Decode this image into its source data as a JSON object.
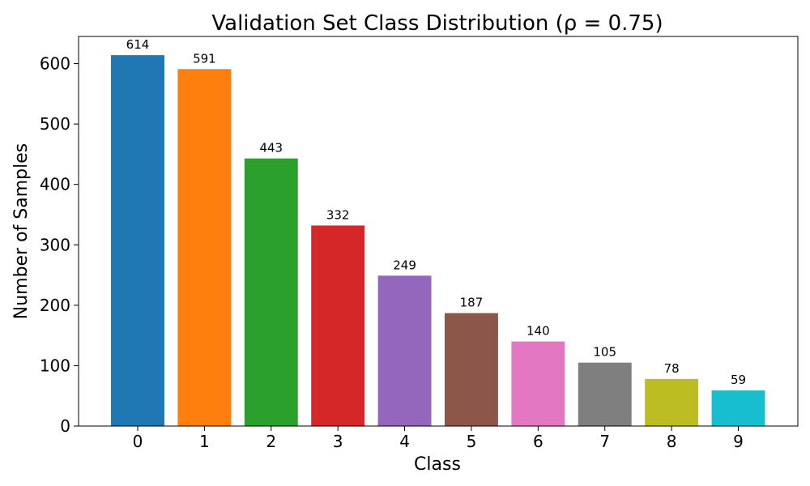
{
  "chart_data": {
    "type": "bar",
    "title": "Validation Set Class Distribution (ρ = 0.75)",
    "xlabel": "Class",
    "ylabel": "Number of Samples",
    "categories": [
      "0",
      "1",
      "2",
      "3",
      "4",
      "5",
      "6",
      "7",
      "8",
      "9"
    ],
    "values": [
      614,
      591,
      443,
      332,
      249,
      187,
      140,
      105,
      78,
      59
    ],
    "colors": [
      "#1f77b4",
      "#ff7f0e",
      "#2ca02c",
      "#d62728",
      "#9467bd",
      "#8c564b",
      "#e377c2",
      "#7f7f7f",
      "#bcbd22",
      "#17becf"
    ],
    "ylim": [
      0,
      645
    ],
    "yticks": [
      0,
      100,
      200,
      300,
      400,
      500,
      600
    ],
    "grid": false,
    "legend": "none"
  }
}
